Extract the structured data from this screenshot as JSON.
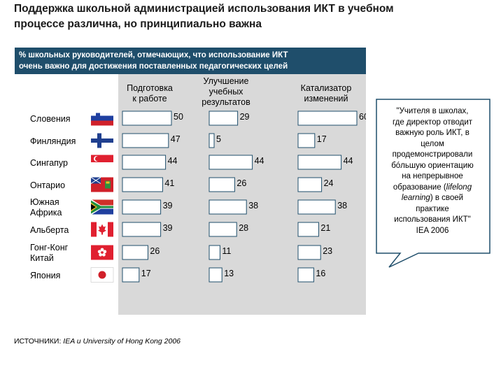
{
  "title": {
    "line1": "Поддержка школьной администрацией использования ИКТ в учебном",
    "line2": "процессе различна, но принципиально важна"
  },
  "header": {
    "line1": "% школьных руководителей, отмечающих, что использование ИКТ",
    "line2": "очень важно для достижения поставленных педагогических целей"
  },
  "source": {
    "prefix": "ИСТОЧНИКИ: ",
    "italic": "IEA и University of Hong Kong 2006"
  },
  "callout": {
    "lines": [
      "\"Учителя в школах,",
      "где директор отводит",
      "важную роль ИКТ, в",
      "целом",
      "продемонстрировали",
      "бóльшую ориентацию",
      "на непрерывное",
      "образование (lifelong",
      "learning) в своей",
      "практике",
      "использования ИКТ\"",
      "IEA 2006"
    ]
  },
  "colors": {
    "header_bg": "#1f4e6b",
    "panel_bg": "#d9d9d9",
    "bar_fill": "#ffffff",
    "bar_stroke": "#1f4e6b"
  },
  "chart_data": {
    "type": "bar",
    "orientation": "horizontal",
    "title": "% школьных руководителей, отмечающих, что использование ИКТ очень важно для достижения поставленных педагогических целей",
    "categories": [
      {
        "label": "Словения",
        "flag": "slovenia-flag"
      },
      {
        "label": "Финляндия",
        "flag": "finland-flag"
      },
      {
        "label": "Сингапур",
        "flag": "singapore-flag"
      },
      {
        "label": "Онтарио",
        "flag": "ontario-flag"
      },
      {
        "label": "Южная Африка",
        "flag": "south-africa-flag"
      },
      {
        "label": "Альберта",
        "flag": "alberta-flag"
      },
      {
        "label": "Гонг-Конг Китай",
        "flag": "hong-kong-flag"
      },
      {
        "label": "Япония",
        "flag": "japan-flag"
      }
    ],
    "series": [
      {
        "name": "Подготовка к работе",
        "values": [
          50,
          47,
          44,
          41,
          39,
          39,
          26,
          17
        ]
      },
      {
        "name": "Улучшение учебных результатов",
        "values": [
          29,
          5,
          44,
          26,
          38,
          28,
          11,
          13
        ]
      },
      {
        "name": "Катализатор изменений",
        "values": [
          60,
          17,
          44,
          24,
          38,
          21,
          23,
          16
        ]
      }
    ],
    "xlim": [
      0,
      100
    ]
  }
}
